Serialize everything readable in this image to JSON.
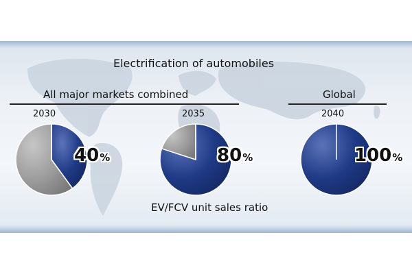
{
  "chart_data": {
    "type": "pie",
    "title": "Electrification of automobiles",
    "groups": [
      {
        "label": "All major markets combined",
        "years": [
          "2030",
          "2035"
        ]
      },
      {
        "label": "Global",
        "years": [
          "2040"
        ]
      }
    ],
    "pies": [
      {
        "year": "2030",
        "value_text": "40",
        "unit": "%",
        "slices": [
          {
            "value": 40,
            "color": "#1f3a86"
          },
          {
            "value": 60,
            "color": "#9a9a9a"
          }
        ]
      },
      {
        "year": "2035",
        "value_text": "80",
        "unit": "%",
        "slices": [
          {
            "value": 80,
            "color": "#1f3a86"
          },
          {
            "value": 20,
            "color": "#9a9a9a"
          }
        ]
      },
      {
        "year": "2040",
        "value_text": "100",
        "unit": "%",
        "slices": [
          {
            "value": 100,
            "color": "#1f3a86"
          }
        ]
      }
    ],
    "footer": "EV/FCV unit sales ratio"
  },
  "colors": {
    "ev_share": "#1f3a86",
    "other_share": "#9a9a9a"
  }
}
